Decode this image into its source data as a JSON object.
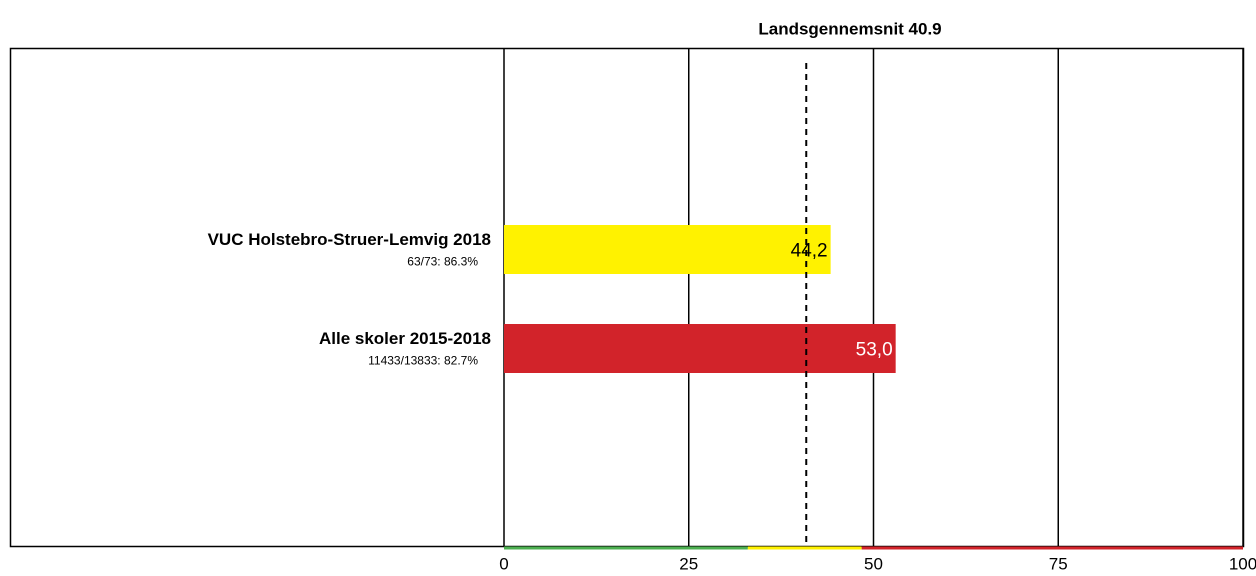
{
  "chart_data": {
    "type": "barh",
    "reference_line": {
      "value": 40.9,
      "label": "Landsgennemsnit 40.9"
    },
    "categories": [
      "VUC Holstebro-Struer-Lemvig 2018",
      "Alle skoler 2015-2018"
    ],
    "sublabels": [
      "63/73: 86.3%",
      "11433/13833: 82.7%"
    ],
    "values": [
      44.2,
      53.0
    ],
    "value_labels": [
      "44,2",
      "53,0"
    ],
    "colors": [
      "#fff200",
      "#d2232a"
    ],
    "value_label_colors": [
      "#000000",
      "#ffffff"
    ],
    "xlim": [
      0,
      100
    ],
    "xticks": [
      0,
      25,
      50,
      75,
      100
    ],
    "grid": true,
    "bands": [
      {
        "from": 0,
        "to": 33,
        "color": "#4caf50"
      },
      {
        "from": 33,
        "to": 48.4,
        "color": "#fff200"
      },
      {
        "from": 48.4,
        "to": 100,
        "color": "#d2232a"
      }
    ]
  }
}
